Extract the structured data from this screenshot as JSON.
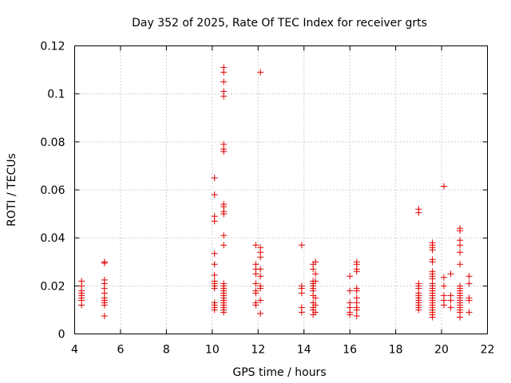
{
  "chart_data": {
    "type": "scatter",
    "title": "Day 352 of 2025, Rate Of TEC Index for receiver grts",
    "xlabel": "GPS time / hours",
    "ylabel": "ROTI / TECUs",
    "xlim": [
      4,
      22
    ],
    "ylim": [
      0,
      0.12
    ],
    "xticks": [
      "4",
      "6",
      "8",
      "10",
      "12",
      "14",
      "16",
      "18",
      "20",
      "22"
    ],
    "yticks": [
      "0",
      "0.02",
      "0.04",
      "0.06",
      "0.08",
      "0.1",
      "0.12"
    ],
    "grid": true,
    "marker": "+",
    "marker_color": "#e00000",
    "points": [
      [
        4.3,
        0.022
      ],
      [
        4.3,
        0.02
      ],
      [
        4.3,
        0.018
      ],
      [
        4.3,
        0.017
      ],
      [
        4.3,
        0.016
      ],
      [
        4.3,
        0.015
      ],
      [
        4.3,
        0.014
      ],
      [
        4.3,
        0.012
      ],
      [
        5.3,
        0.03
      ],
      [
        5.3,
        0.0295
      ],
      [
        5.3,
        0.0225
      ],
      [
        5.3,
        0.021
      ],
      [
        5.3,
        0.019
      ],
      [
        5.3,
        0.017
      ],
      [
        5.3,
        0.015
      ],
      [
        5.3,
        0.014
      ],
      [
        5.3,
        0.013
      ],
      [
        5.3,
        0.012
      ],
      [
        5.3,
        0.0075
      ],
      [
        10.1,
        0.065
      ],
      [
        10.1,
        0.058
      ],
      [
        10.1,
        0.049
      ],
      [
        10.1,
        0.047
      ],
      [
        10.1,
        0.0335
      ],
      [
        10.1,
        0.029
      ],
      [
        10.1,
        0.0245
      ],
      [
        10.1,
        0.022
      ],
      [
        10.1,
        0.021
      ],
      [
        10.1,
        0.02
      ],
      [
        10.1,
        0.019
      ],
      [
        10.1,
        0.013
      ],
      [
        10.1,
        0.012
      ],
      [
        10.1,
        0.011
      ],
      [
        10.1,
        0.01
      ],
      [
        10.5,
        0.111
      ],
      [
        10.5,
        0.109
      ],
      [
        10.5,
        0.105
      ],
      [
        10.5,
        0.101
      ],
      [
        10.5,
        0.099
      ],
      [
        10.5,
        0.079
      ],
      [
        10.5,
        0.077
      ],
      [
        10.5,
        0.076
      ],
      [
        10.5,
        0.054
      ],
      [
        10.5,
        0.053
      ],
      [
        10.5,
        0.051
      ],
      [
        10.5,
        0.05
      ],
      [
        10.5,
        0.041
      ],
      [
        10.5,
        0.037
      ],
      [
        10.5,
        0.021
      ],
      [
        10.5,
        0.02
      ],
      [
        10.5,
        0.019
      ],
      [
        10.5,
        0.018
      ],
      [
        10.5,
        0.017
      ],
      [
        10.5,
        0.016
      ],
      [
        10.5,
        0.015
      ],
      [
        10.5,
        0.014
      ],
      [
        10.5,
        0.013
      ],
      [
        10.5,
        0.012
      ],
      [
        10.5,
        0.011
      ],
      [
        10.5,
        0.01
      ],
      [
        10.5,
        0.009
      ],
      [
        11.9,
        0.037
      ],
      [
        11.9,
        0.029
      ],
      [
        11.9,
        0.027
      ],
      [
        11.9,
        0.025
      ],
      [
        11.9,
        0.021
      ],
      [
        11.9,
        0.018
      ],
      [
        11.9,
        0.017
      ],
      [
        11.9,
        0.013
      ],
      [
        11.9,
        0.012
      ],
      [
        12.1,
        0.109
      ],
      [
        12.1,
        0.036
      ],
      [
        12.1,
        0.034
      ],
      [
        12.1,
        0.032
      ],
      [
        12.1,
        0.027
      ],
      [
        12.1,
        0.024
      ],
      [
        12.1,
        0.02
      ],
      [
        12.1,
        0.019
      ],
      [
        12.1,
        0.014
      ],
      [
        12.1,
        0.0085
      ],
      [
        13.9,
        0.037
      ],
      [
        13.9,
        0.02
      ],
      [
        13.9,
        0.019
      ],
      [
        13.9,
        0.017
      ],
      [
        13.9,
        0.011
      ],
      [
        13.9,
        0.009
      ],
      [
        14.4,
        0.029
      ],
      [
        14.4,
        0.027
      ],
      [
        14.4,
        0.022
      ],
      [
        14.4,
        0.021
      ],
      [
        14.4,
        0.02
      ],
      [
        14.4,
        0.019
      ],
      [
        14.4,
        0.018
      ],
      [
        14.4,
        0.016
      ],
      [
        14.4,
        0.013
      ],
      [
        14.4,
        0.011
      ],
      [
        14.4,
        0.01
      ],
      [
        14.4,
        0.008
      ],
      [
        14.5,
        0.03
      ],
      [
        14.5,
        0.025
      ],
      [
        14.5,
        0.022
      ],
      [
        14.5,
        0.015
      ],
      [
        14.5,
        0.012
      ],
      [
        14.5,
        0.009
      ],
      [
        16.0,
        0.024
      ],
      [
        16.0,
        0.018
      ],
      [
        16.0,
        0.013
      ],
      [
        16.0,
        0.011
      ],
      [
        16.0,
        0.009
      ],
      [
        16.0,
        0.008
      ],
      [
        16.3,
        0.03
      ],
      [
        16.3,
        0.029
      ],
      [
        16.3,
        0.027
      ],
      [
        16.3,
        0.026
      ],
      [
        16.3,
        0.019
      ],
      [
        16.3,
        0.018
      ],
      [
        16.3,
        0.015
      ],
      [
        16.3,
        0.013
      ],
      [
        16.3,
        0.011
      ],
      [
        16.3,
        0.01
      ],
      [
        16.3,
        0.0075
      ],
      [
        19.0,
        0.052
      ],
      [
        19.0,
        0.0505
      ],
      [
        19.0,
        0.021
      ],
      [
        19.0,
        0.02
      ],
      [
        19.0,
        0.019
      ],
      [
        19.0,
        0.017
      ],
      [
        19.0,
        0.016
      ],
      [
        19.0,
        0.015
      ],
      [
        19.0,
        0.014
      ],
      [
        19.0,
        0.013
      ],
      [
        19.0,
        0.012
      ],
      [
        19.0,
        0.011
      ],
      [
        19.0,
        0.01
      ],
      [
        19.6,
        0.038
      ],
      [
        19.6,
        0.037
      ],
      [
        19.6,
        0.036
      ],
      [
        19.6,
        0.035
      ],
      [
        19.6,
        0.031
      ],
      [
        19.6,
        0.03
      ],
      [
        19.6,
        0.026
      ],
      [
        19.6,
        0.025
      ],
      [
        19.6,
        0.024
      ],
      [
        19.6,
        0.023
      ],
      [
        19.6,
        0.021
      ],
      [
        19.6,
        0.02
      ],
      [
        19.6,
        0.019
      ],
      [
        19.6,
        0.018
      ],
      [
        19.6,
        0.017
      ],
      [
        19.6,
        0.016
      ],
      [
        19.6,
        0.015
      ],
      [
        19.6,
        0.014
      ],
      [
        19.6,
        0.013
      ],
      [
        19.6,
        0.012
      ],
      [
        19.6,
        0.011
      ],
      [
        19.6,
        0.01
      ],
      [
        19.6,
        0.009
      ],
      [
        19.6,
        0.008
      ],
      [
        19.6,
        0.007
      ],
      [
        20.1,
        0.0615
      ],
      [
        20.1,
        0.0235
      ],
      [
        20.1,
        0.02
      ],
      [
        20.1,
        0.016
      ],
      [
        20.1,
        0.014
      ],
      [
        20.1,
        0.012
      ],
      [
        20.4,
        0.025
      ],
      [
        20.4,
        0.016
      ],
      [
        20.4,
        0.014
      ],
      [
        20.4,
        0.011
      ],
      [
        20.8,
        0.044
      ],
      [
        20.8,
        0.043
      ],
      [
        20.8,
        0.039
      ],
      [
        20.8,
        0.037
      ],
      [
        20.8,
        0.034
      ],
      [
        20.8,
        0.029
      ],
      [
        20.8,
        0.02
      ],
      [
        20.8,
        0.019
      ],
      [
        20.8,
        0.018
      ],
      [
        20.8,
        0.017
      ],
      [
        20.8,
        0.016
      ],
      [
        20.8,
        0.015
      ],
      [
        20.8,
        0.014
      ],
      [
        20.8,
        0.013
      ],
      [
        20.8,
        0.012
      ],
      [
        20.8,
        0.011
      ],
      [
        20.8,
        0.01
      ],
      [
        20.8,
        0.009
      ],
      [
        20.8,
        0.007
      ],
      [
        21.2,
        0.024
      ],
      [
        21.2,
        0.021
      ],
      [
        21.2,
        0.015
      ],
      [
        21.2,
        0.014
      ],
      [
        21.2,
        0.009
      ]
    ]
  }
}
